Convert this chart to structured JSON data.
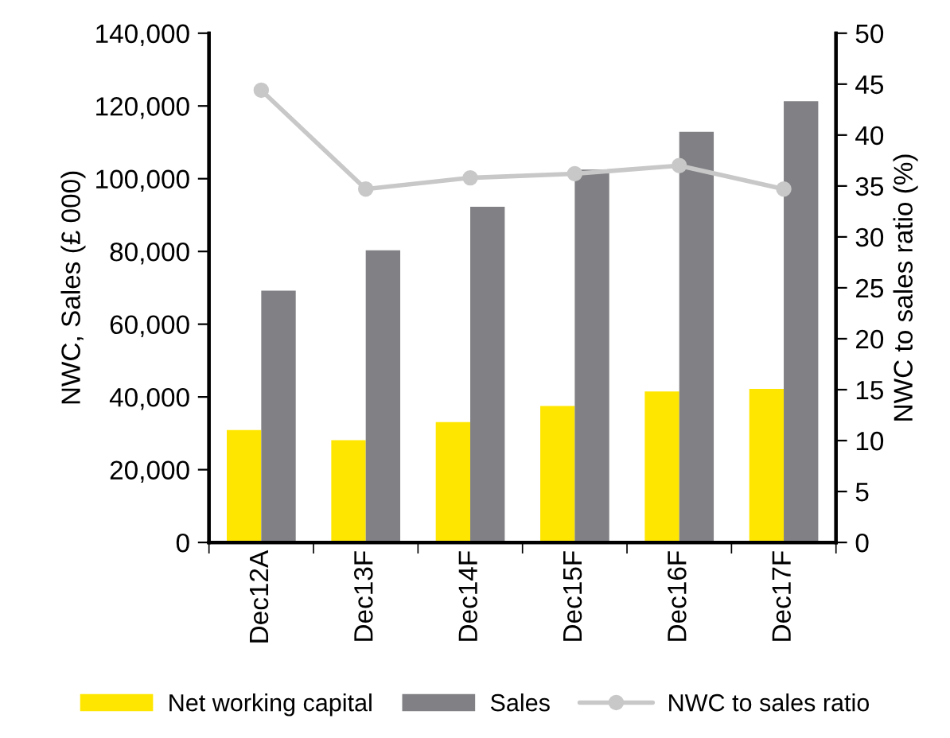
{
  "chart_data": {
    "type": "bar",
    "categories": [
      "Dec12A",
      "Dec13F",
      "Dec14F",
      "Dec15F",
      "Dec16F",
      "Dec17F"
    ],
    "ylabel": "NWC, Sales (£ 000)",
    "y2label": "NWC to sales ratio (%)",
    "series": [
      {
        "name": "Net working capital",
        "color": "#ffe600",
        "values": [
          30900,
          28100,
          33100,
          37500,
          41500,
          42200
        ]
      },
      {
        "name": "Sales",
        "color": "#808085",
        "values": [
          69200,
          80300,
          92300,
          102500,
          112900,
          121300
        ]
      },
      {
        "name": "NWC to sales ratio",
        "type": "line",
        "axis": "y2",
        "color": "#c8c8c8",
        "marker": "circle",
        "values": [
          44.4,
          34.7,
          35.8,
          36.2,
          37.0,
          34.7
        ]
      }
    ],
    "ylim": [
      0,
      140000
    ],
    "yticks": [
      {
        "value": 0,
        "label": "0"
      },
      {
        "value": 20000,
        "label": "20,000"
      },
      {
        "value": 40000,
        "label": "40,000"
      },
      {
        "value": 60000,
        "label": "60,000"
      },
      {
        "value": 80000,
        "label": "80,000"
      },
      {
        "value": 100000,
        "label": "100,000"
      },
      {
        "value": 120000,
        "label": "120,000"
      },
      {
        "value": 140000,
        "label": "140,000"
      }
    ],
    "y2lim": [
      0,
      50
    ],
    "y2ticks": [
      0,
      5,
      10,
      15,
      20,
      25,
      30,
      35,
      40,
      45,
      50
    ],
    "grid": false,
    "legend": "bottom"
  }
}
